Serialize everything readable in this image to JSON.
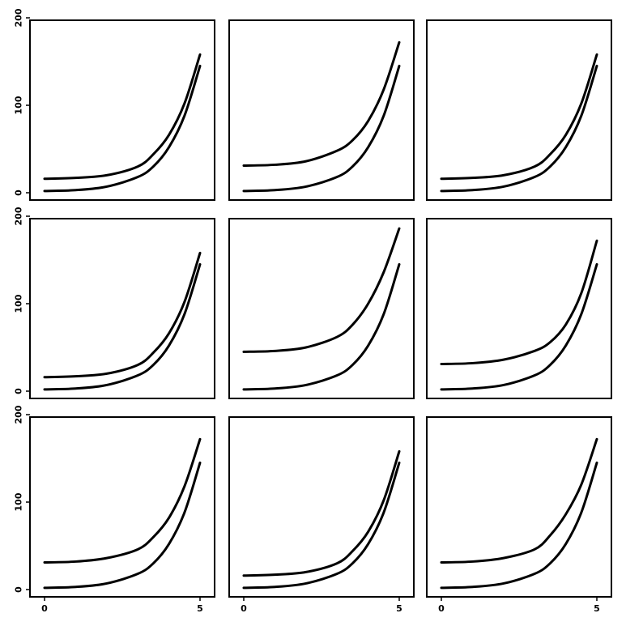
{
  "chart_data": [
    {
      "type": "line",
      "row": 0,
      "col": 0,
      "xlim": [
        0,
        5
      ],
      "ylim": [
        0,
        200
      ],
      "series": [
        {
          "x": [
            0,
            1,
            2,
            3,
            3.5,
            4,
            4.5,
            5
          ],
          "y": [
            2,
            3,
            7,
            18,
            30,
            52,
            88,
            145
          ]
        },
        {
          "x": [
            0,
            1,
            2,
            3,
            3.5,
            4,
            4.5,
            5
          ],
          "y": [
            16,
            17,
            20,
            30,
            44,
            66,
            102,
            158
          ]
        }
      ]
    },
    {
      "type": "line",
      "row": 0,
      "col": 1,
      "xlim": [
        0,
        5
      ],
      "ylim": [
        0,
        200
      ],
      "series": [
        {
          "x": [
            0,
            1,
            2,
            3,
            3.5,
            4,
            4.5,
            5
          ],
          "y": [
            2,
            3,
            7,
            18,
            30,
            52,
            88,
            145
          ]
        },
        {
          "x": [
            0,
            1,
            2,
            3,
            3.5,
            4,
            4.5,
            5
          ],
          "y": [
            31,
            32,
            36,
            48,
            60,
            82,
            118,
            172
          ]
        }
      ]
    },
    {
      "type": "line",
      "row": 0,
      "col": 2,
      "xlim": [
        0,
        5
      ],
      "ylim": [
        0,
        200
      ],
      "series": [
        {
          "x": [
            0,
            1,
            2,
            3,
            3.5,
            4,
            4.5,
            5
          ],
          "y": [
            2,
            3,
            7,
            18,
            30,
            52,
            88,
            145
          ]
        },
        {
          "x": [
            0,
            1,
            2,
            3,
            3.5,
            4,
            4.5,
            5
          ],
          "y": [
            16,
            17,
            20,
            30,
            44,
            66,
            102,
            158
          ]
        }
      ]
    },
    {
      "type": "line",
      "row": 1,
      "col": 0,
      "xlim": [
        0,
        5
      ],
      "ylim": [
        0,
        200
      ],
      "series": [
        {
          "x": [
            0,
            1,
            2,
            3,
            3.5,
            4,
            4.5,
            5
          ],
          "y": [
            2,
            3,
            7,
            18,
            30,
            52,
            88,
            145
          ]
        },
        {
          "x": [
            0,
            1,
            2,
            3,
            3.5,
            4,
            4.5,
            5
          ],
          "y": [
            16,
            17,
            20,
            30,
            44,
            66,
            102,
            158
          ]
        }
      ]
    },
    {
      "type": "line",
      "row": 1,
      "col": 1,
      "xlim": [
        0,
        5
      ],
      "ylim": [
        0,
        200
      ],
      "series": [
        {
          "x": [
            0,
            1,
            2,
            3,
            3.5,
            4,
            4.5,
            5
          ],
          "y": [
            2,
            3,
            7,
            18,
            30,
            52,
            88,
            145
          ]
        },
        {
          "x": [
            0,
            1,
            2,
            3,
            3.5,
            4,
            4.5,
            5
          ],
          "y": [
            45,
            46,
            50,
            62,
            76,
            100,
            136,
            186
          ]
        }
      ]
    },
    {
      "type": "line",
      "row": 1,
      "col": 2,
      "xlim": [
        0,
        5
      ],
      "ylim": [
        0,
        200
      ],
      "series": [
        {
          "x": [
            0,
            1,
            2,
            3,
            3.5,
            4,
            4.5,
            5
          ],
          "y": [
            2,
            3,
            7,
            18,
            30,
            52,
            88,
            145
          ]
        },
        {
          "x": [
            0,
            1,
            2,
            3,
            3.5,
            4,
            4.5,
            5
          ],
          "y": [
            31,
            32,
            36,
            46,
            56,
            76,
            112,
            172
          ]
        }
      ]
    },
    {
      "type": "line",
      "row": 2,
      "col": 0,
      "xlim": [
        0,
        5
      ],
      "ylim": [
        0,
        200
      ],
      "series": [
        {
          "x": [
            0,
            1,
            2,
            3,
            3.5,
            4,
            4.5,
            5
          ],
          "y": [
            2,
            3,
            7,
            18,
            30,
            52,
            88,
            145
          ]
        },
        {
          "x": [
            0,
            1,
            2,
            3,
            3.5,
            4,
            4.5,
            5
          ],
          "y": [
            31,
            32,
            36,
            46,
            60,
            82,
            118,
            172
          ]
        }
      ]
    },
    {
      "type": "line",
      "row": 2,
      "col": 1,
      "xlim": [
        0,
        5
      ],
      "ylim": [
        0,
        200
      ],
      "series": [
        {
          "x": [
            0,
            1,
            2,
            3,
            3.5,
            4,
            4.5,
            5
          ],
          "y": [
            2,
            3,
            7,
            18,
            30,
            52,
            88,
            145
          ]
        },
        {
          "x": [
            0,
            1,
            2,
            3,
            3.5,
            4,
            4.5,
            5
          ],
          "y": [
            16,
            17,
            20,
            30,
            44,
            66,
            102,
            158
          ]
        }
      ]
    },
    {
      "type": "line",
      "row": 2,
      "col": 2,
      "xlim": [
        0,
        5
      ],
      "ylim": [
        0,
        200
      ],
      "series": [
        {
          "x": [
            0,
            1,
            2,
            3,
            3.5,
            4,
            4.5,
            5
          ],
          "y": [
            2,
            3,
            7,
            18,
            30,
            52,
            88,
            145
          ]
        },
        {
          "x": [
            0,
            1,
            2,
            3,
            3.5,
            4,
            4.5,
            5
          ],
          "y": [
            31,
            32,
            36,
            46,
            62,
            86,
            120,
            172
          ]
        }
      ]
    }
  ],
  "axes": {
    "y_ticks": [
      0,
      100,
      200
    ],
    "y_tick_labels": [
      "0",
      "100",
      "200"
    ],
    "x_ticks": [
      0,
      5
    ],
    "x_tick_labels": [
      "0",
      "5"
    ]
  },
  "colors": {
    "line": "#000000",
    "frame": "#000000",
    "background": "#ffffff"
  }
}
